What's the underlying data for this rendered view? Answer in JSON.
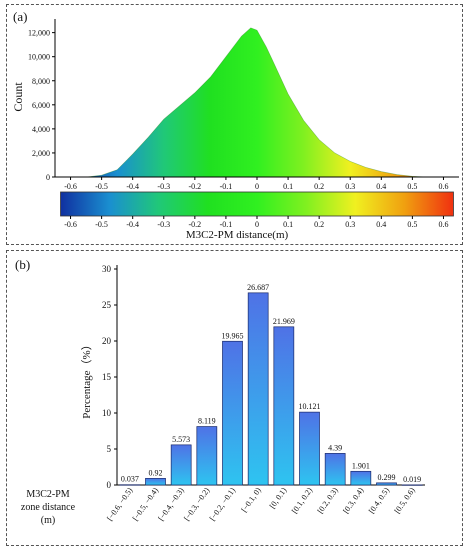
{
  "chart_data": [
    {
      "type": "area",
      "panel_label": "(a)",
      "ylabel": "Count",
      "xlabel": "M3C2-PM distance(m)",
      "xlim": [
        -0.65,
        0.65
      ],
      "ylim": [
        0,
        12800
      ],
      "x_ticks": [
        "-0.6",
        "-0.5",
        "-0.4",
        "-0.3",
        "-0.2",
        "-0.1",
        "0",
        "0.1",
        "0.2",
        "0.3",
        "0.4",
        "0.5",
        "0.6"
      ],
      "y_ticks": [
        "0",
        "2,000",
        "4,000",
        "6,000",
        "8,000",
        "10,000",
        "12,000"
      ],
      "colorbar_ticks": [
        "-0.6",
        "-0.5",
        "-0.4",
        "-0.3",
        "-0.2",
        "-0.1",
        "0",
        "0.1",
        "0.2",
        "0.3",
        "0.4",
        "0.5",
        "0.6"
      ],
      "colormap": [
        "#1030a0",
        "#1a8fd0",
        "#20c878",
        "#20e020",
        "#30f020",
        "#80f020",
        "#f0f020",
        "#f0a010",
        "#f03010"
      ],
      "x": [
        -0.55,
        -0.5,
        -0.45,
        -0.4,
        -0.35,
        -0.3,
        -0.25,
        -0.2,
        -0.15,
        -0.1,
        -0.05,
        -0.02,
        0.0,
        0.03,
        0.05,
        0.1,
        0.15,
        0.2,
        0.25,
        0.3,
        0.35,
        0.4,
        0.45,
        0.5,
        0.55
      ],
      "y": [
        0,
        150,
        600,
        1900,
        3300,
        4800,
        5900,
        7000,
        8300,
        10000,
        11700,
        12400,
        12200,
        10800,
        9700,
        6900,
        4700,
        3100,
        2000,
        1300,
        800,
        450,
        200,
        60,
        0
      ]
    },
    {
      "type": "bar",
      "panel_label": "(b)",
      "ylabel": "Percentage（%）",
      "xlabel_lines": [
        "M3C2-PM",
        "zone distance",
        "(m)"
      ],
      "ylim": [
        0,
        30
      ],
      "y_ticks": [
        "0",
        "5",
        "10",
        "15",
        "20",
        "25",
        "30"
      ],
      "categories": [
        "[−0.6, −0.5)",
        "[−0.5, −0.4)",
        "[−0.4, −0.3)",
        "[−0.3, −0.2)",
        "[−0.2, −0.1)",
        "[−0.1, 0)",
        "[0, 0.1)",
        "[0.1, 0.2)",
        "[0.2, 0.3)",
        "[0.3, 0.4)",
        "[0.4, 0.5)",
        "[0.5, 0.6)"
      ],
      "values": [
        0.037,
        0.92,
        5.573,
        8.119,
        19.965,
        26.687,
        21.969,
        10.121,
        4.39,
        1.901,
        0.299,
        0.019
      ],
      "value_labels": [
        "0.037",
        "0.92",
        "5.573",
        "8.119",
        "19.965",
        "26.687",
        "21.969",
        "10.121",
        "4.39",
        "1.901",
        "0.299",
        "0.019"
      ],
      "bar_colors": [
        "#4f72e6",
        "#2ec4f0"
      ]
    }
  ]
}
